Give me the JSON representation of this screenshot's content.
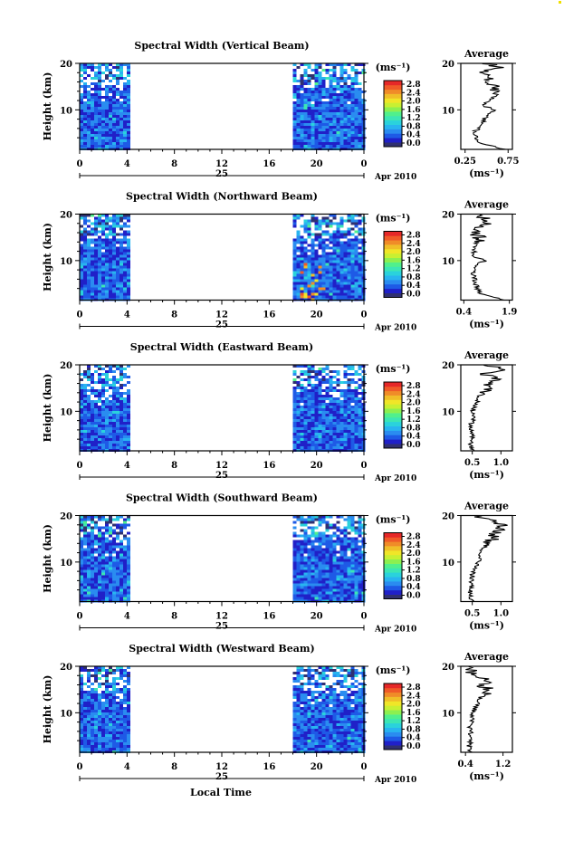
{
  "figure": {
    "panels": [
      {
        "title": "Spectral Width (Vertical Beam)",
        "beam": "vertical"
      },
      {
        "title": "Spectral Width (Northward Beam)",
        "beam": "north"
      },
      {
        "title": "Spectral Width (Eastward Beam)",
        "beam": "east"
      },
      {
        "title": "Spectral Width (Southward Beam)",
        "beam": "south"
      },
      {
        "title": "Spectral Width (Westward Beam)",
        "beam": "west"
      }
    ],
    "ylabel": "Height (km)",
    "xlabel": "Local Time",
    "date_day": "25",
    "date_month_year": "Apr 2010",
    "colorbar": {
      "unit_label": "(ms⁻¹)",
      "tick_labels": [
        "0.0",
        "0.4",
        "0.8",
        "1.2",
        "1.6",
        "2.0",
        "2.4",
        "2.8"
      ],
      "colors": [
        "#303070",
        "#2020c8",
        "#1e5ae6",
        "#2a8cf0",
        "#28b4f0",
        "#2ad2dc",
        "#3ce6b4",
        "#50f08c",
        "#8cf050",
        "#c8f032",
        "#f0e628",
        "#f0be28",
        "#f08c28",
        "#f05a28",
        "#e62828"
      ]
    },
    "profile": {
      "title": "Average",
      "xunit": "(ms⁻¹)"
    }
  },
  "chart_data": [
    {
      "type": "heatmap",
      "title": "Spectral Width (Vertical Beam)",
      "xlabel": "",
      "ylabel": "Height (km)",
      "xlim": [
        0,
        24
      ],
      "ylim": [
        1.5,
        20
      ],
      "x_ticks": [
        "0",
        "4",
        "8",
        "12",
        "16",
        "20",
        "0"
      ],
      "y_ticks": [
        "10",
        "20"
      ],
      "data_coverage_hours": [
        [
          0,
          4
        ],
        [
          18,
          24
        ]
      ],
      "colorbar_range": [
        0.0,
        3.0
      ],
      "colorbar_ticks": [
        "0.0",
        "0.4",
        "0.8",
        "1.2",
        "1.6",
        "2.0",
        "2.4",
        "2.8"
      ],
      "average_profile": {
        "title": "Average",
        "xlabel": "(ms⁻¹)",
        "xlim": [
          0.2,
          0.8
        ],
        "x_ticks": [
          "0.25",
          "0.75"
        ],
        "y_ticks": [
          "10",
          "20"
        ],
        "height_km": [
          1.5,
          3,
          5,
          7,
          9,
          10,
          11,
          13,
          15,
          16,
          17,
          18,
          19,
          20
        ],
        "width_ms": [
          0.72,
          0.4,
          0.35,
          0.45,
          0.5,
          0.6,
          0.45,
          0.6,
          0.62,
          0.5,
          0.55,
          0.45,
          0.65,
          0.5
        ]
      }
    },
    {
      "type": "heatmap",
      "title": "Spectral Width (Northward Beam)",
      "xlabel": "",
      "ylabel": "Height (km)",
      "xlim": [
        0,
        24
      ],
      "ylim": [
        1.5,
        20
      ],
      "x_ticks": [
        "0",
        "4",
        "8",
        "12",
        "16",
        "20",
        "0"
      ],
      "y_ticks": [
        "10",
        "20"
      ],
      "data_coverage_hours": [
        [
          0,
          4
        ],
        [
          18,
          24
        ]
      ],
      "colorbar_range": [
        0.0,
        3.0
      ],
      "colorbar_ticks": [
        "0.0",
        "0.4",
        "0.8",
        "1.2",
        "1.6",
        "2.0",
        "2.4",
        "2.8"
      ],
      "average_profile": {
        "title": "Average",
        "xlabel": "(ms⁻¹)",
        "xlim": [
          0.3,
          2.0
        ],
        "x_ticks": [
          "0.4",
          "1.9"
        ],
        "y_ticks": [
          "10",
          "20"
        ],
        "height_km": [
          1.5,
          3,
          5,
          7,
          9,
          10,
          11,
          13,
          15,
          16,
          17,
          18,
          19,
          20
        ],
        "width_ms": [
          1.75,
          0.9,
          0.8,
          0.7,
          0.8,
          1.1,
          0.7,
          0.8,
          0.9,
          0.75,
          0.9,
          1.1,
          1.2,
          0.7
        ]
      }
    },
    {
      "type": "heatmap",
      "title": "Spectral Width (Eastward Beam)",
      "xlabel": "",
      "ylabel": "Height (km)",
      "xlim": [
        0,
        24
      ],
      "ylim": [
        1.5,
        20
      ],
      "x_ticks": [
        "0",
        "4",
        "8",
        "12",
        "16",
        "20",
        "0"
      ],
      "y_ticks": [
        "10",
        "20"
      ],
      "data_coverage_hours": [
        [
          0,
          4
        ],
        [
          18,
          24
        ]
      ],
      "colorbar_range": [
        0.0,
        3.0
      ],
      "colorbar_ticks": [
        "0.0",
        "0.4",
        "0.8",
        "1.2",
        "1.6",
        "2.0",
        "2.4",
        "2.8"
      ],
      "average_profile": {
        "title": "Average",
        "xlabel": "(ms⁻¹)",
        "xlim": [
          0.3,
          1.2
        ],
        "x_ticks": [
          "0.5",
          "1.0"
        ],
        "y_ticks": [
          "10",
          "20"
        ],
        "height_km": [
          1.5,
          3,
          5,
          7,
          9,
          10,
          11,
          13,
          15,
          16,
          17,
          18,
          19,
          20
        ],
        "width_ms": [
          0.5,
          0.48,
          0.5,
          0.48,
          0.52,
          0.5,
          0.55,
          0.6,
          0.8,
          0.75,
          0.95,
          0.7,
          1.15,
          0.6
        ]
      }
    },
    {
      "type": "heatmap",
      "title": "Spectral Width (Southward Beam)",
      "xlabel": "",
      "ylabel": "Height (km)",
      "xlim": [
        0,
        24
      ],
      "ylim": [
        1.5,
        20
      ],
      "x_ticks": [
        "0",
        "4",
        "8",
        "12",
        "16",
        "20",
        "0"
      ],
      "y_ticks": [
        "10",
        "20"
      ],
      "data_coverage_hours": [
        [
          0,
          4
        ],
        [
          18,
          24
        ]
      ],
      "colorbar_range": [
        0.0,
        3.0
      ],
      "colorbar_ticks": [
        "0.0",
        "0.4",
        "0.8",
        "1.2",
        "1.6",
        "2.0",
        "2.4",
        "2.8"
      ],
      "average_profile": {
        "title": "Average",
        "xlabel": "(ms⁻¹)",
        "xlim": [
          0.3,
          1.2
        ],
        "x_ticks": [
          "0.5",
          "1.0"
        ],
        "y_ticks": [
          "10",
          "20"
        ],
        "height_km": [
          1.5,
          3,
          5,
          7,
          9,
          10,
          11,
          13,
          15,
          16,
          17,
          18,
          19,
          20
        ],
        "width_ms": [
          0.5,
          0.45,
          0.48,
          0.5,
          0.55,
          0.6,
          0.62,
          0.7,
          0.85,
          0.9,
          0.95,
          1.0,
          0.8,
          0.55
        ]
      }
    },
    {
      "type": "heatmap",
      "title": "Spectral Width (Westward Beam)",
      "xlabel": "Local Time",
      "ylabel": "Height (km)",
      "xlim": [
        0,
        24
      ],
      "ylim": [
        1.5,
        20
      ],
      "x_ticks": [
        "0",
        "4",
        "8",
        "12",
        "16",
        "20",
        "0"
      ],
      "y_ticks": [
        "10",
        "20"
      ],
      "data_coverage_hours": [
        [
          0,
          4
        ],
        [
          18,
          24
        ]
      ],
      "colorbar_range": [
        0.0,
        3.0
      ],
      "colorbar_ticks": [
        "0.0",
        "0.4",
        "0.8",
        "1.2",
        "1.6",
        "2.0",
        "2.4",
        "2.8"
      ],
      "average_profile": {
        "title": "Average",
        "xlabel": "(ms⁻¹)",
        "xlim": [
          0.3,
          1.4
        ],
        "x_ticks": [
          "0.4",
          "1.2"
        ],
        "y_ticks": [
          "10",
          "20"
        ],
        "height_km": [
          1.5,
          3,
          5,
          7,
          9,
          10,
          11,
          13,
          15,
          16,
          17,
          18,
          19,
          20
        ],
        "width_ms": [
          0.5,
          0.48,
          0.52,
          0.5,
          0.55,
          0.55,
          0.6,
          0.7,
          0.9,
          0.75,
          0.85,
          0.6,
          0.5,
          0.45
        ]
      }
    }
  ]
}
